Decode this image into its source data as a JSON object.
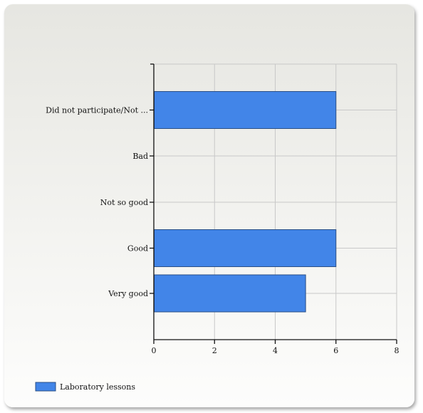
{
  "chart_data": {
    "type": "bar",
    "orientation": "horizontal",
    "categories": [
      "Did not participate/Not ...",
      "Bad",
      "Not so good",
      "Good",
      "Very good"
    ],
    "series": [
      {
        "name": "Laboratory lessons",
        "values": [
          6,
          0,
          0,
          6,
          5
        ],
        "color": "#4285e8"
      }
    ],
    "xlim": [
      0,
      8
    ],
    "xticks": [
      0,
      2,
      4,
      6,
      8
    ],
    "grid": true,
    "legend_position": "bottom-left",
    "title": "",
    "xlabel": "",
    "ylabel": ""
  },
  "colors": {
    "bar_fill": "#4285e8",
    "bar_stroke": "#2a4f86",
    "grid": "#c8c8c8",
    "axis": "#111111"
  }
}
